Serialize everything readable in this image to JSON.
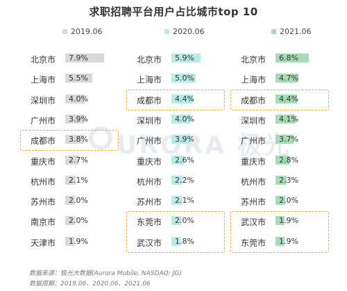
{
  "chart_data": {
    "type": "bar",
    "title": "求职招聘平台用户占比城市top 10",
    "unit": "%",
    "series": [
      {
        "name": "2019.06",
        "color": "#d9d9d9",
        "categories": [
          "北京市",
          "上海市",
          "深圳市",
          "广州市",
          "成都市",
          "重庆市",
          "杭州市",
          "苏州市",
          "南京市",
          "天津市"
        ],
        "values": [
          7.9,
          5.5,
          4.0,
          3.9,
          3.8,
          2.7,
          2.1,
          2.0,
          2.0,
          1.9
        ],
        "labels": [
          "7.9%",
          "5.5%",
          "4.0%",
          "3.9%",
          "3.8%",
          "2.7%",
          "2.1%",
          "2.0%",
          "2.0%",
          "1.9%"
        ]
      },
      {
        "name": "2020.06",
        "color": "#b8ebe7",
        "categories": [
          "北京市",
          "上海市",
          "成都市",
          "深圳市",
          "广州市",
          "重庆市",
          "杭州市",
          "苏州市",
          "东莞市",
          "武汉市"
        ],
        "values": [
          5.9,
          5.0,
          4.4,
          4.0,
          3.9,
          2.6,
          2.2,
          2.1,
          2.0,
          1.8
        ],
        "labels": [
          "5.9%",
          "5.0%",
          "4.4%",
          "4.0%",
          "3.9%",
          "2.6%",
          "2.2%",
          "2.1%",
          "2.0%",
          "1.8%"
        ]
      },
      {
        "name": "2021.06",
        "color": "#a8dcb7",
        "categories": [
          "北京市",
          "上海市",
          "成都市",
          "深圳市",
          "广州市",
          "重庆市",
          "杭州市",
          "苏州市",
          "武汉市",
          "东莞市"
        ],
        "values": [
          6.8,
          4.7,
          4.4,
          4.1,
          3.7,
          2.8,
          2.3,
          2.0,
          1.9,
          1.9
        ],
        "labels": [
          "6.8%",
          "4.7%",
          "4.4%",
          "4.1%",
          "3.7%",
          "2.8%",
          "2.3%",
          "2.0%",
          "1.9%",
          "1.9%"
        ]
      }
    ],
    "highlights": [
      {
        "series": 0,
        "rows": [
          4
        ]
      },
      {
        "series": 1,
        "rows": [
          2
        ]
      },
      {
        "series": 1,
        "rows": [
          8,
          9
        ]
      },
      {
        "series": 2,
        "rows": [
          2
        ]
      },
      {
        "series": 2,
        "rows": [
          8,
          9
        ]
      }
    ],
    "highlight_color": "#f0a830"
  },
  "watermark": {
    "text": "URORA 极光"
  },
  "source": {
    "line1": "数据来源：极光大数据(Aurora Mobile, NASDAQ: JG)",
    "line2": "数据周期：2019.06、2020.06、2021.06"
  }
}
